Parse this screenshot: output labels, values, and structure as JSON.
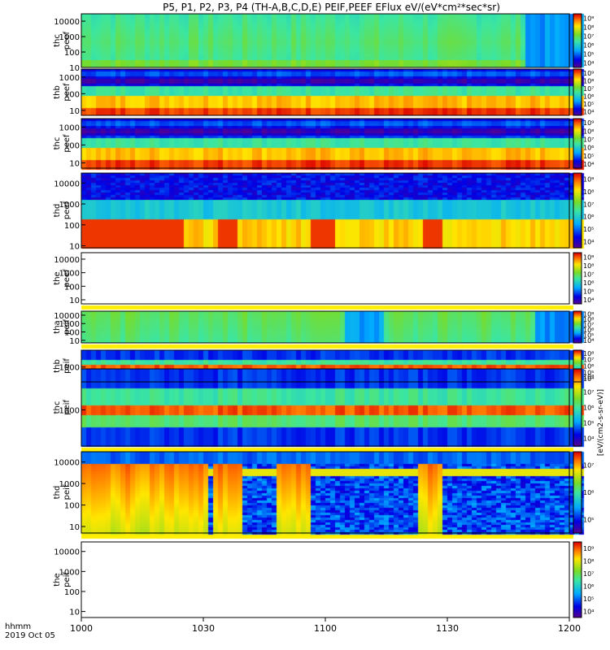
{
  "title": "P5, P1, P2, P3, P4 (TH-A,B,C,D,E) PEIF,PEEF EFlux eV/(eV*cm²*sec*sr)",
  "footer": {
    "hhmm": "hhmm",
    "date": "2019 Oct 05"
  },
  "x_ticks": [
    "1000",
    "1030",
    "1100",
    "1130",
    "1200"
  ],
  "colorbar_label": "[eV/(cm2-s-sr-eV)]",
  "chart_data": {
    "type": "heatmap",
    "x_range": [
      "10:00",
      "12:00"
    ],
    "y_scale": "log",
    "colormap": "rainbow (purple-blue-cyan-green-yellow-red)",
    "panels": [
      {
        "label": [
          "thc",
          "peef"
        ],
        "yticks": [
          "10",
          "100",
          "1000",
          "10000"
        ],
        "yrange": [
          10,
          30000
        ],
        "cbar_ticks": [
          "10⁴",
          "10⁵",
          "10⁶",
          "10⁷",
          "10⁸",
          "10⁹"
        ],
        "fill": "green",
        "start_gap": 0,
        "end_gap": 0.93
      },
      {
        "label": [
          "thb",
          "peef"
        ],
        "yticks": [
          "10",
          "100",
          "1000"
        ],
        "yrange": [
          5,
          3000
        ],
        "cbar_ticks": [
          "10⁴",
          "10⁵",
          "10⁶",
          "10⁷",
          "10⁸",
          "10⁹"
        ],
        "fill": "bands_electron"
      },
      {
        "label": [
          "thc",
          "peef"
        ],
        "yticks": [
          "10",
          "100",
          "1000"
        ],
        "yrange": [
          5,
          3000
        ],
        "cbar_ticks": [
          "10⁴",
          "10⁵",
          "10⁶",
          "10⁷",
          "10⁸",
          "10⁹"
        ],
        "fill": "bands_electron"
      },
      {
        "label": [
          "thd",
          "peef"
        ],
        "yticks": [
          "10",
          "100",
          "1000",
          "10000"
        ],
        "yrange": [
          8,
          30000
        ],
        "cbar_ticks": [
          "10⁴",
          "10⁵",
          "10⁶",
          "10⁷",
          "10⁸",
          "10⁹"
        ],
        "fill": "thd_electron"
      },
      {
        "label": [
          "the",
          "peef"
        ],
        "yticks": [
          "10",
          "100",
          "1000",
          "10000"
        ],
        "yrange": [
          5,
          30000
        ],
        "cbar_ticks": [
          "10⁴",
          "10⁵",
          "10⁶",
          "10⁷",
          "10⁸",
          "10⁹"
        ],
        "fill": "empty"
      },
      {
        "label": [
          "tha",
          "peif"
        ],
        "yticks": [
          "10",
          "100",
          "1000",
          "10000"
        ],
        "yrange": [
          5,
          30000
        ],
        "cbar_ticks": [
          "10⁴",
          "10⁵",
          "10⁶",
          "10⁷",
          "10⁸",
          "10⁹"
        ],
        "fill": "green_ion"
      },
      {
        "label": [
          "thb",
          "peif"
        ],
        "yticks": [
          "1000"
        ],
        "yrange": [
          50,
          30000
        ],
        "cbar_ticks": [
          "10⁴",
          "10⁵",
          "10⁶",
          "10⁷",
          "10⁸"
        ],
        "fill": "bands_ion"
      },
      {
        "label": [
          "thc",
          "peif"
        ],
        "yticks": [
          "1000"
        ],
        "yrange": [
          50,
          30000
        ],
        "cbar_ticks": [
          "10⁴",
          "10⁵",
          "10⁶",
          "10⁷",
          "10⁸"
        ],
        "fill": "bands_ion"
      },
      {
        "label": [
          "thd",
          "peif"
        ],
        "yticks": [
          "10",
          "100",
          "1000",
          "10000"
        ],
        "yrange": [
          5,
          30000
        ],
        "cbar_ticks": [
          "10⁵",
          "10⁶",
          "10⁷"
        ],
        "fill": "thd_ion"
      },
      {
        "label": [
          "the",
          "peif"
        ],
        "yticks": [
          "10",
          "100",
          "1000",
          "10000"
        ],
        "yrange": [
          5,
          30000
        ],
        "cbar_ticks": [
          "10⁴",
          "10⁵",
          "10⁶",
          "10⁷",
          "10⁸",
          "10⁹"
        ],
        "fill": "empty"
      }
    ]
  }
}
